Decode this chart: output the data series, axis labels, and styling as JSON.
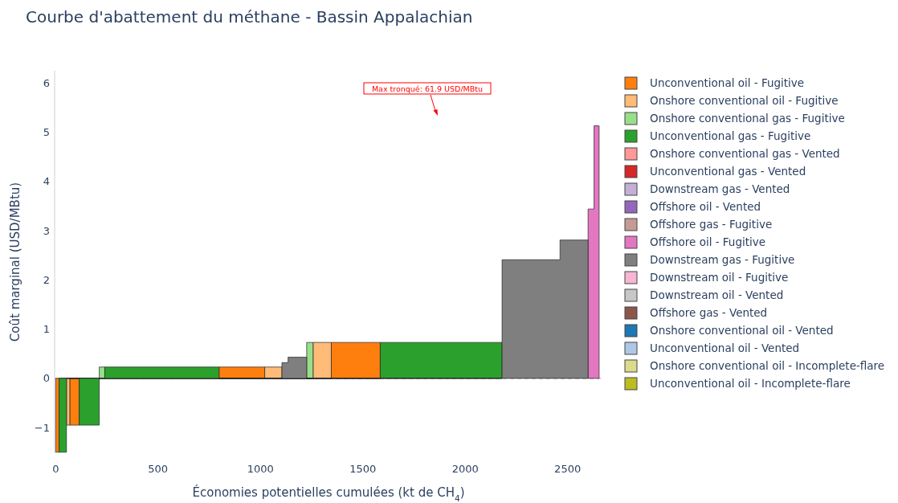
{
  "chart_data": {
    "type": "area",
    "title": "Courbe d'abattement du méthane - Bassin Appalachian",
    "xlabel": "Économies potentielles cumulées (kt de CH$_{4}$)",
    "ylabel": "Coût marginal (USD/MBtu)",
    "xlim": [
      -5,
      2670
    ],
    "xticks": [
      0,
      500,
      1000,
      1500,
      2000,
      2500
    ],
    "ylim": [
      -1.52,
      6.25
    ],
    "yticks": [
      {
        "value": -1,
        "label": "−1"
      },
      0,
      1,
      2,
      3,
      4,
      5,
      6
    ],
    "legend": "right",
    "ref_lines": [
      {
        "axis": "y",
        "value": 0,
        "color": "#bbbbbb",
        "line_style": "dashed"
      }
    ],
    "annotations": [
      "Max tronqué: 61.9 USD/MBtu"
    ],
    "series": [
      {
        "name": "Unconventional oil - Fugitive",
        "color": "#ff7f0e",
        "x": [
          0,
          17,
          17,
          69,
          69,
          115,
          115,
          798,
          798,
          1021,
          1021,
          1346,
          1346,
          1585
        ],
        "values": [
          -1.5,
          -1.5,
          0,
          0,
          -0.95,
          -0.95,
          0,
          0,
          0.23,
          0.23,
          0,
          0,
          0.73,
          0.73
        ]
      },
      {
        "name": "Onshore conventional oil - Fugitive",
        "color": "#ffbb78",
        "x": [
          53,
          69,
          69,
          1021,
          1021,
          1105,
          1105,
          1257,
          1257,
          1346
        ],
        "values": [
          -0.95,
          -0.95,
          0,
          0,
          0.23,
          0.23,
          0,
          0,
          0.73,
          0.73
        ]
      },
      {
        "name": "Onshore conventional gas - Fugitive",
        "color": "#98df8a",
        "x": [
          213,
          240,
          240,
          1226,
          1226,
          1257
        ],
        "values": [
          0.23,
          0.23,
          0,
          0,
          0.73,
          0.73
        ]
      },
      {
        "name": "Unconventional gas - Fugitive",
        "color": "#2ca02c",
        "x": [
          17,
          53,
          53,
          115,
          115,
          213,
          213,
          240,
          240,
          798,
          798,
          1585,
          1585,
          2180
        ],
        "values": [
          -1.5,
          -1.5,
          0,
          0,
          -0.95,
          -0.95,
          0,
          0,
          0.23,
          0.23,
          0,
          0,
          0.73,
          0.73
        ]
      },
      {
        "name": "Onshore conventional gas - Vented",
        "color": "#ff9896"
      },
      {
        "name": "Unconventional gas - Vented",
        "color": "#d62728"
      },
      {
        "name": "Downstream gas - Vented",
        "color": "#c5b0d5"
      },
      {
        "name": "Offshore oil - Vented",
        "color": "#9467bd"
      },
      {
        "name": "Offshore gas - Fugitive",
        "color": "#c49c94"
      },
      {
        "name": "Offshore oil - Fugitive",
        "color": "#e377c2",
        "x": [
          2600,
          2629,
          2629,
          2654
        ],
        "values": [
          3.44,
          3.44,
          5.13,
          5.13
        ]
      },
      {
        "name": "Downstream gas - Fugitive",
        "color": "#7f7f7f",
        "x": [
          1105,
          1135,
          1135,
          1226,
          1226,
          2180,
          2180,
          2463,
          2463,
          2600
        ],
        "values": [
          0.32,
          0.32,
          0.43,
          0.43,
          0,
          0,
          2.41,
          2.41,
          2.81,
          2.81
        ]
      },
      {
        "name": "Downstream oil - Fugitive",
        "color": "#f7b6d2"
      },
      {
        "name": "Downstream oil - Vented",
        "color": "#c7c7c7"
      },
      {
        "name": "Offshore gas - Vented",
        "color": "#8c564b"
      },
      {
        "name": "Onshore conventional oil - Vented",
        "color": "#1f77b4"
      },
      {
        "name": "Unconventional oil - Vented",
        "color": "#aec7e8"
      },
      {
        "name": "Onshore conventional oil - Incomplete-flare",
        "color": "#dbdb8d"
      },
      {
        "name": "Unconventional oil - Incomplete-flare",
        "color": "#bcbd22"
      }
    ]
  }
}
